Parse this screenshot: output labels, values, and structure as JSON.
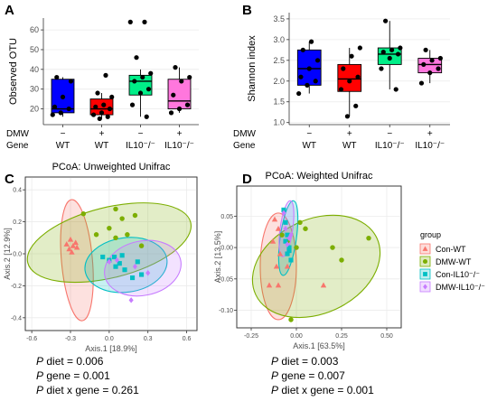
{
  "panels": {
    "A": {
      "letter": "A",
      "ylabel": "Observed OTU",
      "yticks": [
        20,
        30,
        40,
        50,
        60
      ],
      "ylim": [
        12,
        66
      ],
      "row_labels": {
        "dmw": "DMW",
        "gene": "Gene"
      },
      "groups": [
        {
          "dmw": "−",
          "gene": "WT",
          "color": "#0000ff",
          "q1": 18,
          "median": 20,
          "q3": 35,
          "whisker_low": 16,
          "whisker_high": 36,
          "points": [
            17,
            18,
            20,
            21,
            26,
            34,
            36
          ]
        },
        {
          "dmw": "+",
          "gene": "WT",
          "color": "#ff0000",
          "q1": 17,
          "median": 20,
          "q3": 25,
          "whisker_low": 15,
          "whisker_high": 28,
          "points": [
            15,
            16,
            17,
            18,
            20,
            21,
            22,
            26,
            28,
            37
          ]
        },
        {
          "dmw": "−",
          "gene": "IL10⁻/⁻",
          "color": "#00ee88",
          "q1": 27,
          "median": 34,
          "q3": 37,
          "whisker_low": 16,
          "whisker_high": 40,
          "points": [
            16,
            22,
            28,
            30,
            34,
            36,
            38,
            46,
            64,
            64
          ]
        },
        {
          "dmw": "+",
          "gene": "IL10⁻/⁻",
          "color": "#ff77dd",
          "q1": 20,
          "median": 24,
          "q3": 35,
          "whisker_low": 18,
          "whisker_high": 41,
          "points": [
            18,
            20,
            22,
            27,
            34,
            36,
            41
          ]
        }
      ]
    },
    "B": {
      "letter": "B",
      "ylabel": "Shannon index",
      "yticks": [
        1.0,
        1.5,
        2.0,
        2.5,
        3.0,
        3.5
      ],
      "ytick_labels": [
        "1.0",
        "1.5",
        "2.0",
        "2.5",
        "3.0",
        "3.5"
      ],
      "ylim": [
        0.95,
        3.65
      ],
      "row_labels": {
        "dmw": "DMW",
        "gene": "Gene"
      },
      "groups": [
        {
          "dmw": "−",
          "gene": "WT",
          "color": "#0000ff",
          "q1": 1.9,
          "median": 2.3,
          "q3": 2.75,
          "whisker_low": 1.7,
          "whisker_high": 2.95,
          "points": [
            1.7,
            1.9,
            2.0,
            2.1,
            2.3,
            2.5,
            2.75,
            2.95
          ]
        },
        {
          "dmw": "+",
          "gene": "WT",
          "color": "#ff0000",
          "q1": 1.75,
          "median": 2.05,
          "q3": 2.4,
          "whisker_low": 1.15,
          "whisker_high": 2.8,
          "points": [
            1.15,
            1.4,
            1.8,
            2.0,
            2.1,
            2.3,
            2.6,
            2.8
          ]
        },
        {
          "dmw": "−",
          "gene": "IL10⁻/⁻",
          "color": "#00ee88",
          "q1": 2.4,
          "median": 2.65,
          "q3": 2.8,
          "whisker_low": 1.8,
          "whisker_high": 3.45,
          "points": [
            1.8,
            2.3,
            2.55,
            2.65,
            2.7,
            2.75,
            2.8,
            3.45
          ]
        },
        {
          "dmw": "+",
          "gene": "IL10⁻/⁻",
          "color": "#ff77dd",
          "q1": 2.2,
          "median": 2.4,
          "q3": 2.55,
          "whisker_low": 1.95,
          "whisker_high": 2.75,
          "points": [
            1.95,
            2.2,
            2.3,
            2.4,
            2.5,
            2.55,
            2.75
          ]
        }
      ]
    },
    "C": {
      "letter": "C",
      "title": "PCoA: Unweighted Unifrac",
      "xlabel": "Axis.1   [18.9%]",
      "ylabel": "Axis.2   [12.9%]",
      "xticks": [
        -0.6,
        -0.3,
        0.0,
        0.3,
        0.6
      ],
      "xtick_labels": [
        "-0.6",
        "-0.3",
        "0.0",
        "0.3",
        "0.6"
      ],
      "yticks": [
        -0.4,
        -0.2,
        0.0,
        0.2,
        0.4
      ],
      "ytick_labels": [
        "-0.4",
        "-0.2",
        "0.0",
        "0.2",
        "0.4"
      ],
      "xlim": [
        -0.65,
        0.68
      ],
      "ylim": [
        -0.48,
        0.48
      ],
      "stats": [
        {
          "prefix": "P",
          "text": " diet = 0.006"
        },
        {
          "prefix": "P",
          "text": " gene = 0.001"
        },
        {
          "prefix": "P",
          "text": " diet x gene = 0.261"
        }
      ]
    },
    "D": {
      "letter": "D",
      "title": "PCoA: Weighted Unifrac",
      "xlabel": "Axis.1   [63.5%]",
      "ylabel": "Axis.2   [13.5%]",
      "xticks": [
        -0.25,
        0.0,
        0.25,
        0.5
      ],
      "xtick_labels": [
        "-0.25",
        "0.00",
        "0.25",
        "0.50"
      ],
      "yticks": [
        -0.1,
        -0.05,
        0.0,
        0.05
      ],
      "ytick_labels": [
        "-0.10",
        "-0.05",
        "0.00",
        "0.05"
      ],
      "xlim": [
        -0.33,
        0.58
      ],
      "ylim": [
        -0.128,
        0.098
      ],
      "stats": [
        {
          "prefix": "P",
          "text": " diet = 0.003"
        },
        {
          "prefix": "P",
          "text": " gene = 0.007"
        },
        {
          "prefix": "P",
          "text": " diet x gene = 0.001"
        }
      ]
    }
  },
  "legend": {
    "title": "group",
    "items": [
      {
        "label": "Con-WT",
        "color": "#f8766d",
        "shape": "triangle"
      },
      {
        "label": "DMW-WT",
        "color": "#7cae00",
        "shape": "circle"
      },
      {
        "label": "Con-IL10⁻/⁻",
        "color": "#00bfc4",
        "shape": "square"
      },
      {
        "label": "DMW-IL10⁻/⁻",
        "color": "#c77cff",
        "shape": "diamond"
      }
    ]
  },
  "chart_data": [
    {
      "type": "box",
      "panel": "A",
      "ylabel": "Observed OTU",
      "categories": [
        "DMW − / WT",
        "DMW + / WT",
        "DMW − / IL10⁻/⁻",
        "DMW + / IL10⁻/⁻"
      ],
      "medians": [
        20,
        20,
        34,
        24
      ],
      "ylim": [
        12,
        66
      ]
    },
    {
      "type": "box",
      "panel": "B",
      "ylabel": "Shannon index",
      "categories": [
        "DMW − / WT",
        "DMW + / WT",
        "DMW − / IL10⁻/⁻",
        "DMW + / IL10⁻/⁻"
      ],
      "medians": [
        2.3,
        2.05,
        2.65,
        2.4
      ],
      "ylim": [
        0.95,
        3.65
      ]
    },
    {
      "type": "scatter",
      "panel": "C",
      "title": "PCoA: Unweighted Unifrac",
      "xlabel": "Axis.1   [18.9%]",
      "ylabel": "Axis.2   [12.9%]",
      "xlim": [
        -0.65,
        0.68
      ],
      "ylim": [
        -0.48,
        0.48
      ],
      "legend_position": "right",
      "series": [
        {
          "name": "Con-WT",
          "color": "#f8766d",
          "shape": "triangle",
          "points": [
            [
              -0.33,
              0.06
            ],
            [
              -0.3,
              0.09
            ],
            [
              -0.28,
              0.05
            ],
            [
              -0.26,
              0.07
            ],
            [
              -0.25,
              0.04
            ],
            [
              -0.29,
              0.01
            ],
            [
              -0.31,
              0.03
            ]
          ],
          "ellipse": {
            "cx": -0.25,
            "cy": -0.04,
            "rx": 0.12,
            "ry": 0.38,
            "angle": -5
          }
        },
        {
          "name": "DMW-WT",
          "color": "#7cae00",
          "shape": "circle",
          "points": [
            [
              -0.2,
              0.25
            ],
            [
              -0.1,
              0.12
            ],
            [
              0.0,
              0.16
            ],
            [
              0.05,
              0.28
            ],
            [
              0.1,
              0.22
            ],
            [
              0.2,
              0.24
            ],
            [
              0.14,
              0.12
            ],
            [
              0.25,
              0.05
            ],
            [
              0.05,
              0.1
            ]
          ],
          "ellipse": {
            "cx": 0.0,
            "cy": 0.07,
            "rx": 0.65,
            "ry": 0.22,
            "angle": -14
          }
        },
        {
          "name": "Con-IL10⁻/⁻",
          "color": "#00bfc4",
          "shape": "square",
          "points": [
            [
              -0.05,
              -0.02
            ],
            [
              0.0,
              -0.04
            ],
            [
              0.04,
              -0.02
            ],
            [
              0.08,
              -0.06
            ],
            [
              0.1,
              -0.01
            ],
            [
              0.12,
              -0.1
            ],
            [
              0.18,
              -0.15
            ],
            [
              0.22,
              -0.05
            ],
            [
              0.25,
              -0.13
            ],
            [
              0.05,
              -0.08
            ]
          ],
          "ellipse": {
            "cx": 0.13,
            "cy": -0.07,
            "rx": 0.32,
            "ry": 0.17,
            "angle": -8
          }
        },
        {
          "name": "DMW-IL10⁻/⁻",
          "color": "#c77cff",
          "shape": "diamond",
          "points": [
            [
              0.0,
              -0.05
            ],
            [
              0.06,
              -0.04
            ],
            [
              0.2,
              -0.08
            ],
            [
              0.3,
              -0.12
            ],
            [
              0.17,
              -0.29
            ]
          ],
          "ellipse": {
            "cx": 0.26,
            "cy": -0.09,
            "rx": 0.3,
            "ry": 0.17,
            "angle": -12
          }
        }
      ]
    },
    {
      "type": "scatter",
      "panel": "D",
      "title": "PCoA: Weighted Unifrac",
      "xlabel": "Axis.1   [63.5%]",
      "ylabel": "Axis.2   [13.5%]",
      "xlim": [
        -0.33,
        0.58
      ],
      "ylim": [
        -0.128,
        0.098
      ],
      "legend_position": "right",
      "series": [
        {
          "name": "Con-WT",
          "color": "#f8766d",
          "shape": "triangle",
          "points": [
            [
              -0.12,
              0.045
            ],
            [
              -0.1,
              0.03
            ],
            [
              -0.13,
              0.01
            ],
            [
              -0.09,
              -0.01
            ],
            [
              -0.11,
              -0.03
            ],
            [
              -0.1,
              -0.06
            ],
            [
              -0.15,
              -0.06
            ],
            [
              -0.05,
              -0.03
            ],
            [
              0.15,
              -0.06
            ]
          ],
          "ellipse": {
            "cx": -0.1,
            "cy": -0.03,
            "rx": 0.1,
            "ry": 0.085,
            "angle": 0
          }
        },
        {
          "name": "DMW-WT",
          "color": "#7cae00",
          "shape": "circle",
          "points": [
            [
              -0.08,
              0.02
            ],
            [
              -0.05,
              0.01
            ],
            [
              0.0,
              0.0
            ],
            [
              0.05,
              0.03
            ],
            [
              0.2,
              0.0
            ],
            [
              0.25,
              -0.02
            ],
            [
              0.4,
              0.015
            ],
            [
              -0.03,
              -0.115
            ],
            [
              0.02,
              0.04
            ]
          ],
          "ellipse": {
            "cx": 0.11,
            "cy": -0.03,
            "rx": 0.37,
            "ry": 0.075,
            "angle": -25
          }
        },
        {
          "name": "Con-IL10⁻/⁻",
          "color": "#00bfc4",
          "shape": "square",
          "points": [
            [
              -0.07,
              0.06
            ],
            [
              -0.06,
              0.04
            ],
            [
              -0.05,
              0.02
            ],
            [
              -0.04,
              0.0
            ],
            [
              -0.05,
              -0.01
            ],
            [
              -0.03,
              -0.02
            ],
            [
              -0.06,
              0.01
            ],
            [
              -0.04,
              -0.005
            ]
          ],
          "ellipse": {
            "cx": -0.045,
            "cy": 0.015,
            "rx": 0.045,
            "ry": 0.06,
            "angle": 8
          }
        },
        {
          "name": "DMW-IL10⁻/⁻",
          "color": "#c77cff",
          "shape": "diamond",
          "points": [
            [
              -0.07,
              0.055
            ],
            [
              -0.06,
              0.03
            ],
            [
              -0.04,
              0.015
            ],
            [
              -0.05,
              0.005
            ],
            [
              -0.03,
              0.02
            ]
          ],
          "ellipse": {
            "cx": -0.055,
            "cy": 0.03,
            "rx": 0.035,
            "ry": 0.045,
            "angle": 8
          }
        }
      ]
    }
  ]
}
